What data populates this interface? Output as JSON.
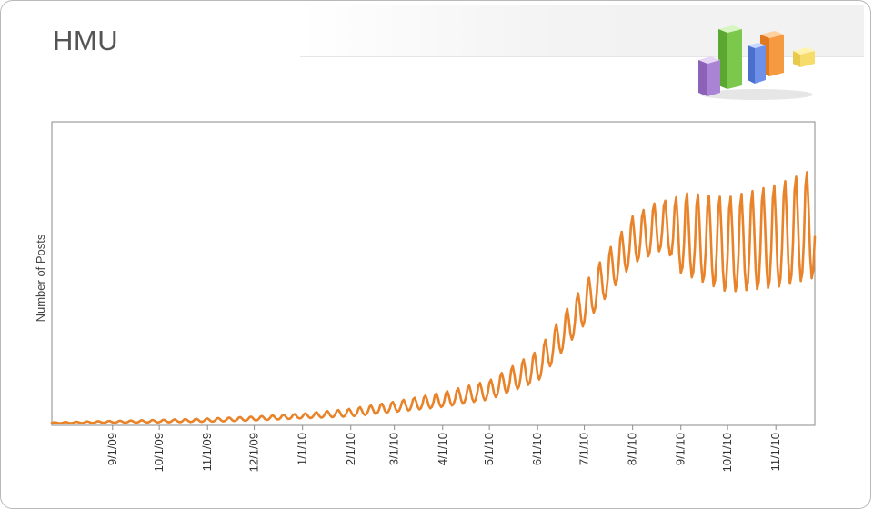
{
  "slide": {
    "title": "HMU",
    "logo_icon": "bar-chart-3d-icon"
  },
  "colors": {
    "series": "#E8832A",
    "plot_border": "#8a8a8a",
    "frame": "#b9b9b9",
    "title": "#555555"
  },
  "chart_data": {
    "type": "line",
    "title": "",
    "xlabel": "",
    "ylabel": "Number of Posts",
    "x_range": [
      "2009-07-24",
      "2010-11-26"
    ],
    "ylim": [
      0,
      100
    ],
    "grid": false,
    "legend": "none",
    "y_ticks_shown": false,
    "x_ticks": [
      "9/1/09",
      "10/1/09",
      "11/1/09",
      "12/1/09",
      "1/1/10",
      "2/1/10",
      "3/1/10",
      "4/1/10",
      "5/1/10",
      "6/1/10",
      "7/1/10",
      "8/1/10",
      "9/1/10",
      "10/1/10",
      "11/1/10"
    ],
    "x_tick_dates": [
      "2009-09-01",
      "2009-10-01",
      "2009-11-01",
      "2009-12-01",
      "2010-01-01",
      "2010-02-01",
      "2010-03-01",
      "2010-04-01",
      "2010-05-01",
      "2010-06-01",
      "2010-07-01",
      "2010-08-01",
      "2010-09-01",
      "2010-10-01",
      "2010-11-01"
    ],
    "series": [
      {
        "color": "#E8832A",
        "trend": [
          {
            "x": "2009-07-24",
            "y": 0.5
          },
          {
            "x": "2009-09-01",
            "y": 0.8
          },
          {
            "x": "2009-10-01",
            "y": 1.0
          },
          {
            "x": "2009-11-01",
            "y": 1.3
          },
          {
            "x": "2009-12-01",
            "y": 1.8
          },
          {
            "x": "2010-01-01",
            "y": 2.6
          },
          {
            "x": "2010-02-01",
            "y": 3.6
          },
          {
            "x": "2010-03-01",
            "y": 5.4
          },
          {
            "x": "2010-04-01",
            "y": 7.6
          },
          {
            "x": "2010-05-01",
            "y": 10.6
          },
          {
            "x": "2010-06-01",
            "y": 18.0
          },
          {
            "x": "2010-07-01",
            "y": 38.0
          },
          {
            "x": "2010-08-01",
            "y": 59.0
          },
          {
            "x": "2010-08-20",
            "y": 64.0
          },
          {
            "x": "2010-09-01",
            "y": 60.0
          },
          {
            "x": "2010-10-01",
            "y": 55.5
          },
          {
            "x": "2010-11-01",
            "y": 58.0
          },
          {
            "x": "2010-11-26",
            "y": 62.0
          }
        ],
        "weekly_amplitude": [
          {
            "x": "2009-07-24",
            "y": 0.2
          },
          {
            "x": "2010-01-01",
            "y": 1.0
          },
          {
            "x": "2010-03-01",
            "y": 2.2
          },
          {
            "x": "2010-05-01",
            "y": 4.0
          },
          {
            "x": "2010-06-01",
            "y": 6.5
          },
          {
            "x": "2010-07-01",
            "y": 8.5
          },
          {
            "x": "2010-08-01",
            "y": 10.0
          },
          {
            "x": "2010-08-25",
            "y": 11.0
          },
          {
            "x": "2010-09-01",
            "y": 17.0
          },
          {
            "x": "2010-10-01",
            "y": 20.0
          },
          {
            "x": "2010-11-26",
            "y": 23.0
          }
        ]
      }
    ]
  }
}
